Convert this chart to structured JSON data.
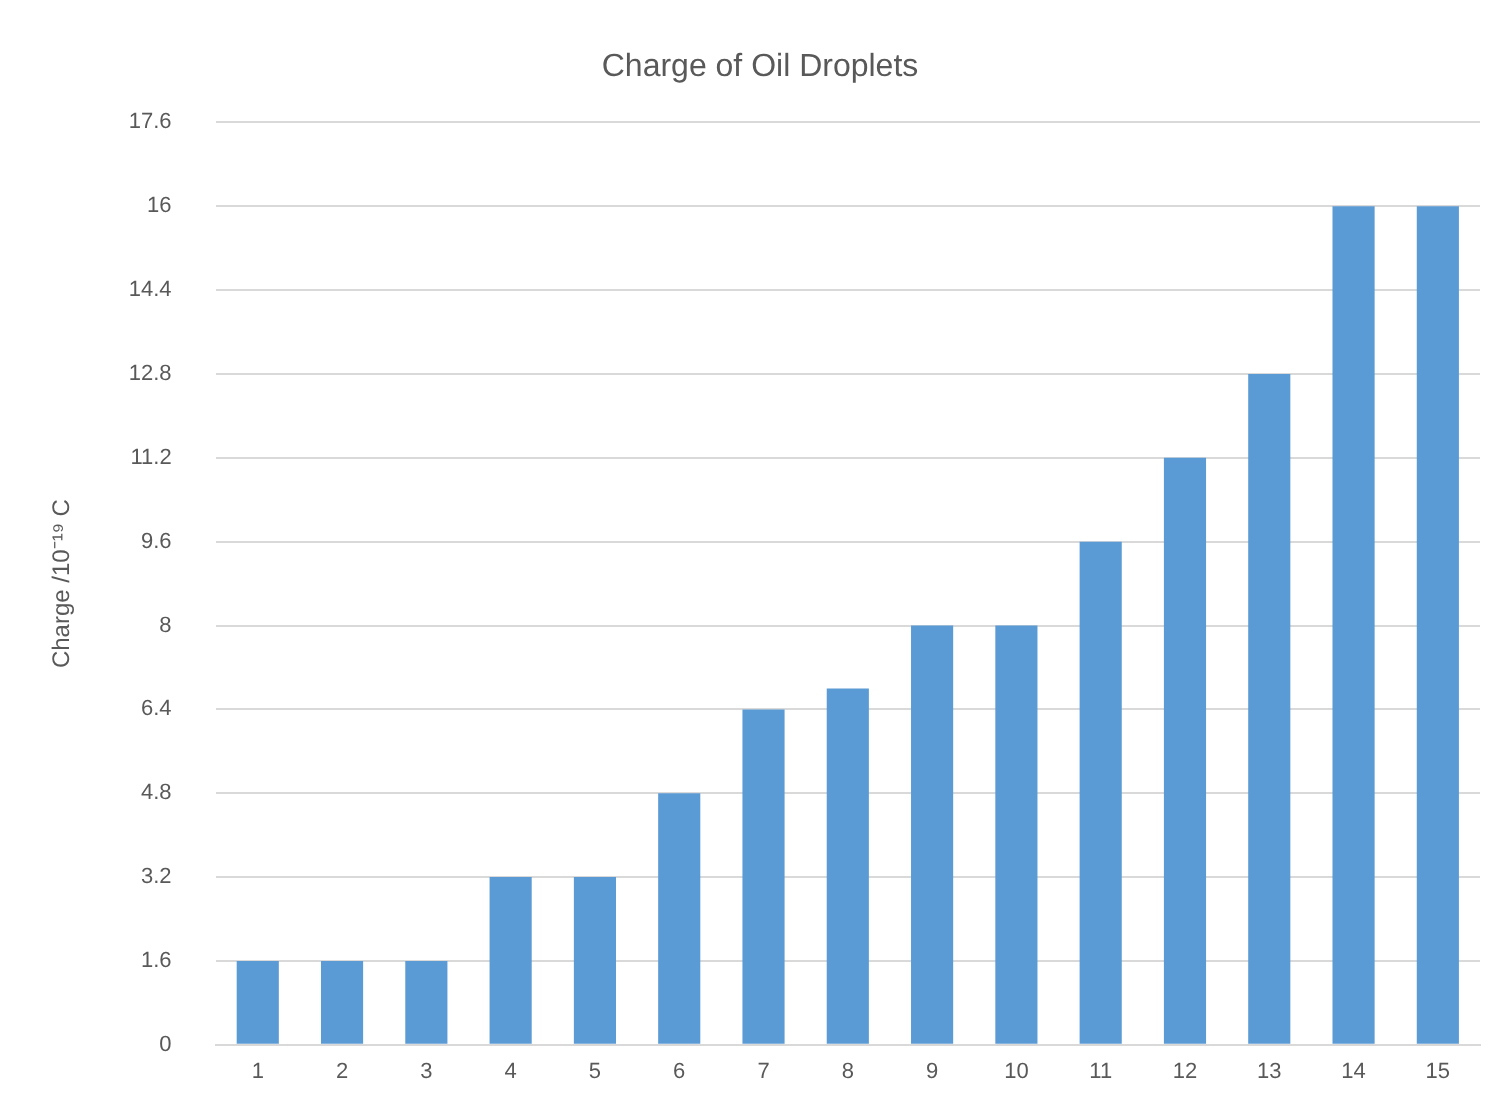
{
  "chart_data": {
    "type": "bar",
    "title": "Charge of Oil Droplets",
    "ylabel": "Charge /10⁻¹⁹ C",
    "categories": [
      "1",
      "2",
      "3",
      "4",
      "5",
      "6",
      "7",
      "8",
      "9",
      "10",
      "11",
      "12",
      "13",
      "14",
      "15"
    ],
    "values": [
      1.6,
      1.6,
      1.6,
      3.2,
      3.2,
      4.8,
      6.4,
      6.8,
      8,
      8,
      9.6,
      11.2,
      12.8,
      16,
      16
    ],
    "color": "#5b9bd5",
    "ylim": [
      0,
      17.6
    ],
    "yticks": [
      0,
      1.6,
      3.2,
      4.8,
      6.4,
      8,
      9.6,
      11.2,
      12.8,
      14.4,
      16,
      17.6
    ],
    "grid": "y",
    "legend": false
  }
}
